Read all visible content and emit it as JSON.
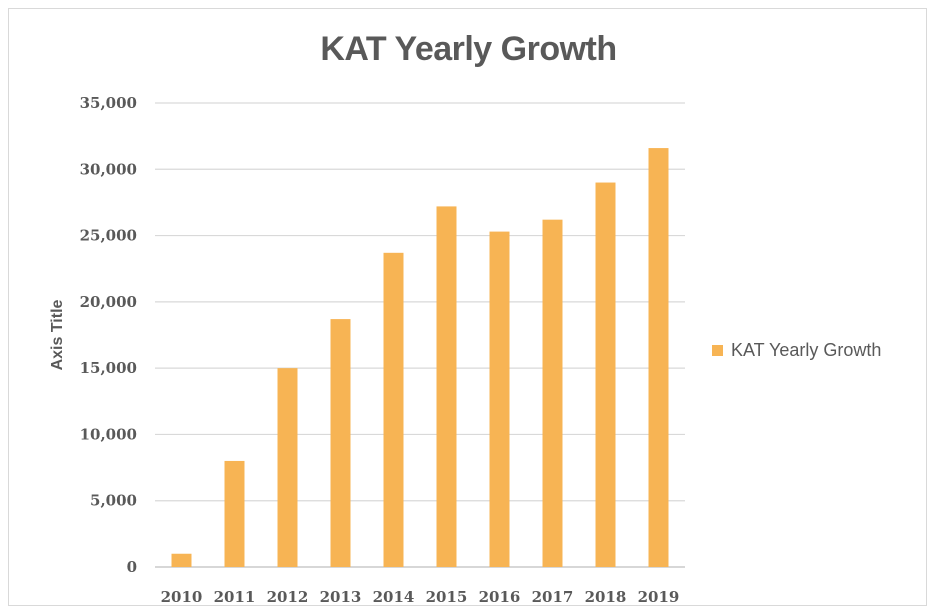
{
  "chart_data": {
    "type": "bar",
    "title": "KAT Yearly Growth",
    "xlabel": "",
    "ylabel": "Axis Title",
    "categories": [
      "2010",
      "2011",
      "2012",
      "2013",
      "2014",
      "2015",
      "2016",
      "2017",
      "2018",
      "2019"
    ],
    "series": [
      {
        "name": "KAT Yearly Growth",
        "values": [
          1000,
          8000,
          15000,
          18700,
          23700,
          27200,
          25300,
          26200,
          29000,
          31600
        ],
        "color": "#f7b454"
      }
    ],
    "yticks": [
      "0",
      "5,000",
      "10,000",
      "15,000",
      "20,000",
      "25,000",
      "30,000",
      "35,000"
    ],
    "ylim": [
      0,
      35000
    ],
    "grid": true,
    "legend_position": "right"
  }
}
